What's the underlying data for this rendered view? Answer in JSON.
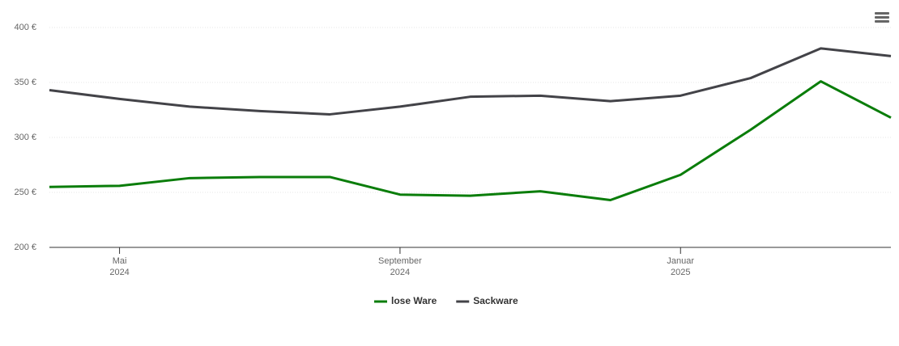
{
  "chart_data": {
    "type": "line",
    "x": [
      "2024-04",
      "2024-05",
      "2024-06",
      "2024-07",
      "2024-08",
      "2024-09",
      "2024-10",
      "2024-11",
      "2024-12",
      "2025-01",
      "2025-02",
      "2025-03",
      "2025-04"
    ],
    "series": [
      {
        "name": "lose Ware",
        "color": "#0a7d0a",
        "values": [
          255,
          256,
          263,
          264,
          264,
          248,
          247,
          251,
          243,
          266,
          307,
          351,
          318
        ]
      },
      {
        "name": "Sackware",
        "color": "#434348",
        "values": [
          343,
          335,
          328,
          324,
          321,
          328,
          337,
          338,
          333,
          338,
          354,
          381,
          374
        ]
      }
    ],
    "xlim": [
      "2024-04",
      "2025-04"
    ],
    "xticks": [
      {
        "value": "2024-05",
        "label": [
          "Mai",
          "2024"
        ]
      },
      {
        "value": "2024-09",
        "label": [
          "September",
          "2024"
        ]
      },
      {
        "value": "2025-01",
        "label": [
          "Januar",
          "2025"
        ]
      }
    ],
    "ylim": [
      200,
      400
    ],
    "yticks": [
      {
        "value": 200,
        "label": "200 €"
      },
      {
        "value": 250,
        "label": "250 €"
      },
      {
        "value": 300,
        "label": "300 €"
      },
      {
        "value": 350,
        "label": "350 €"
      },
      {
        "value": 400,
        "label": "400 €"
      }
    ],
    "grid": true,
    "legend": "bottom"
  }
}
